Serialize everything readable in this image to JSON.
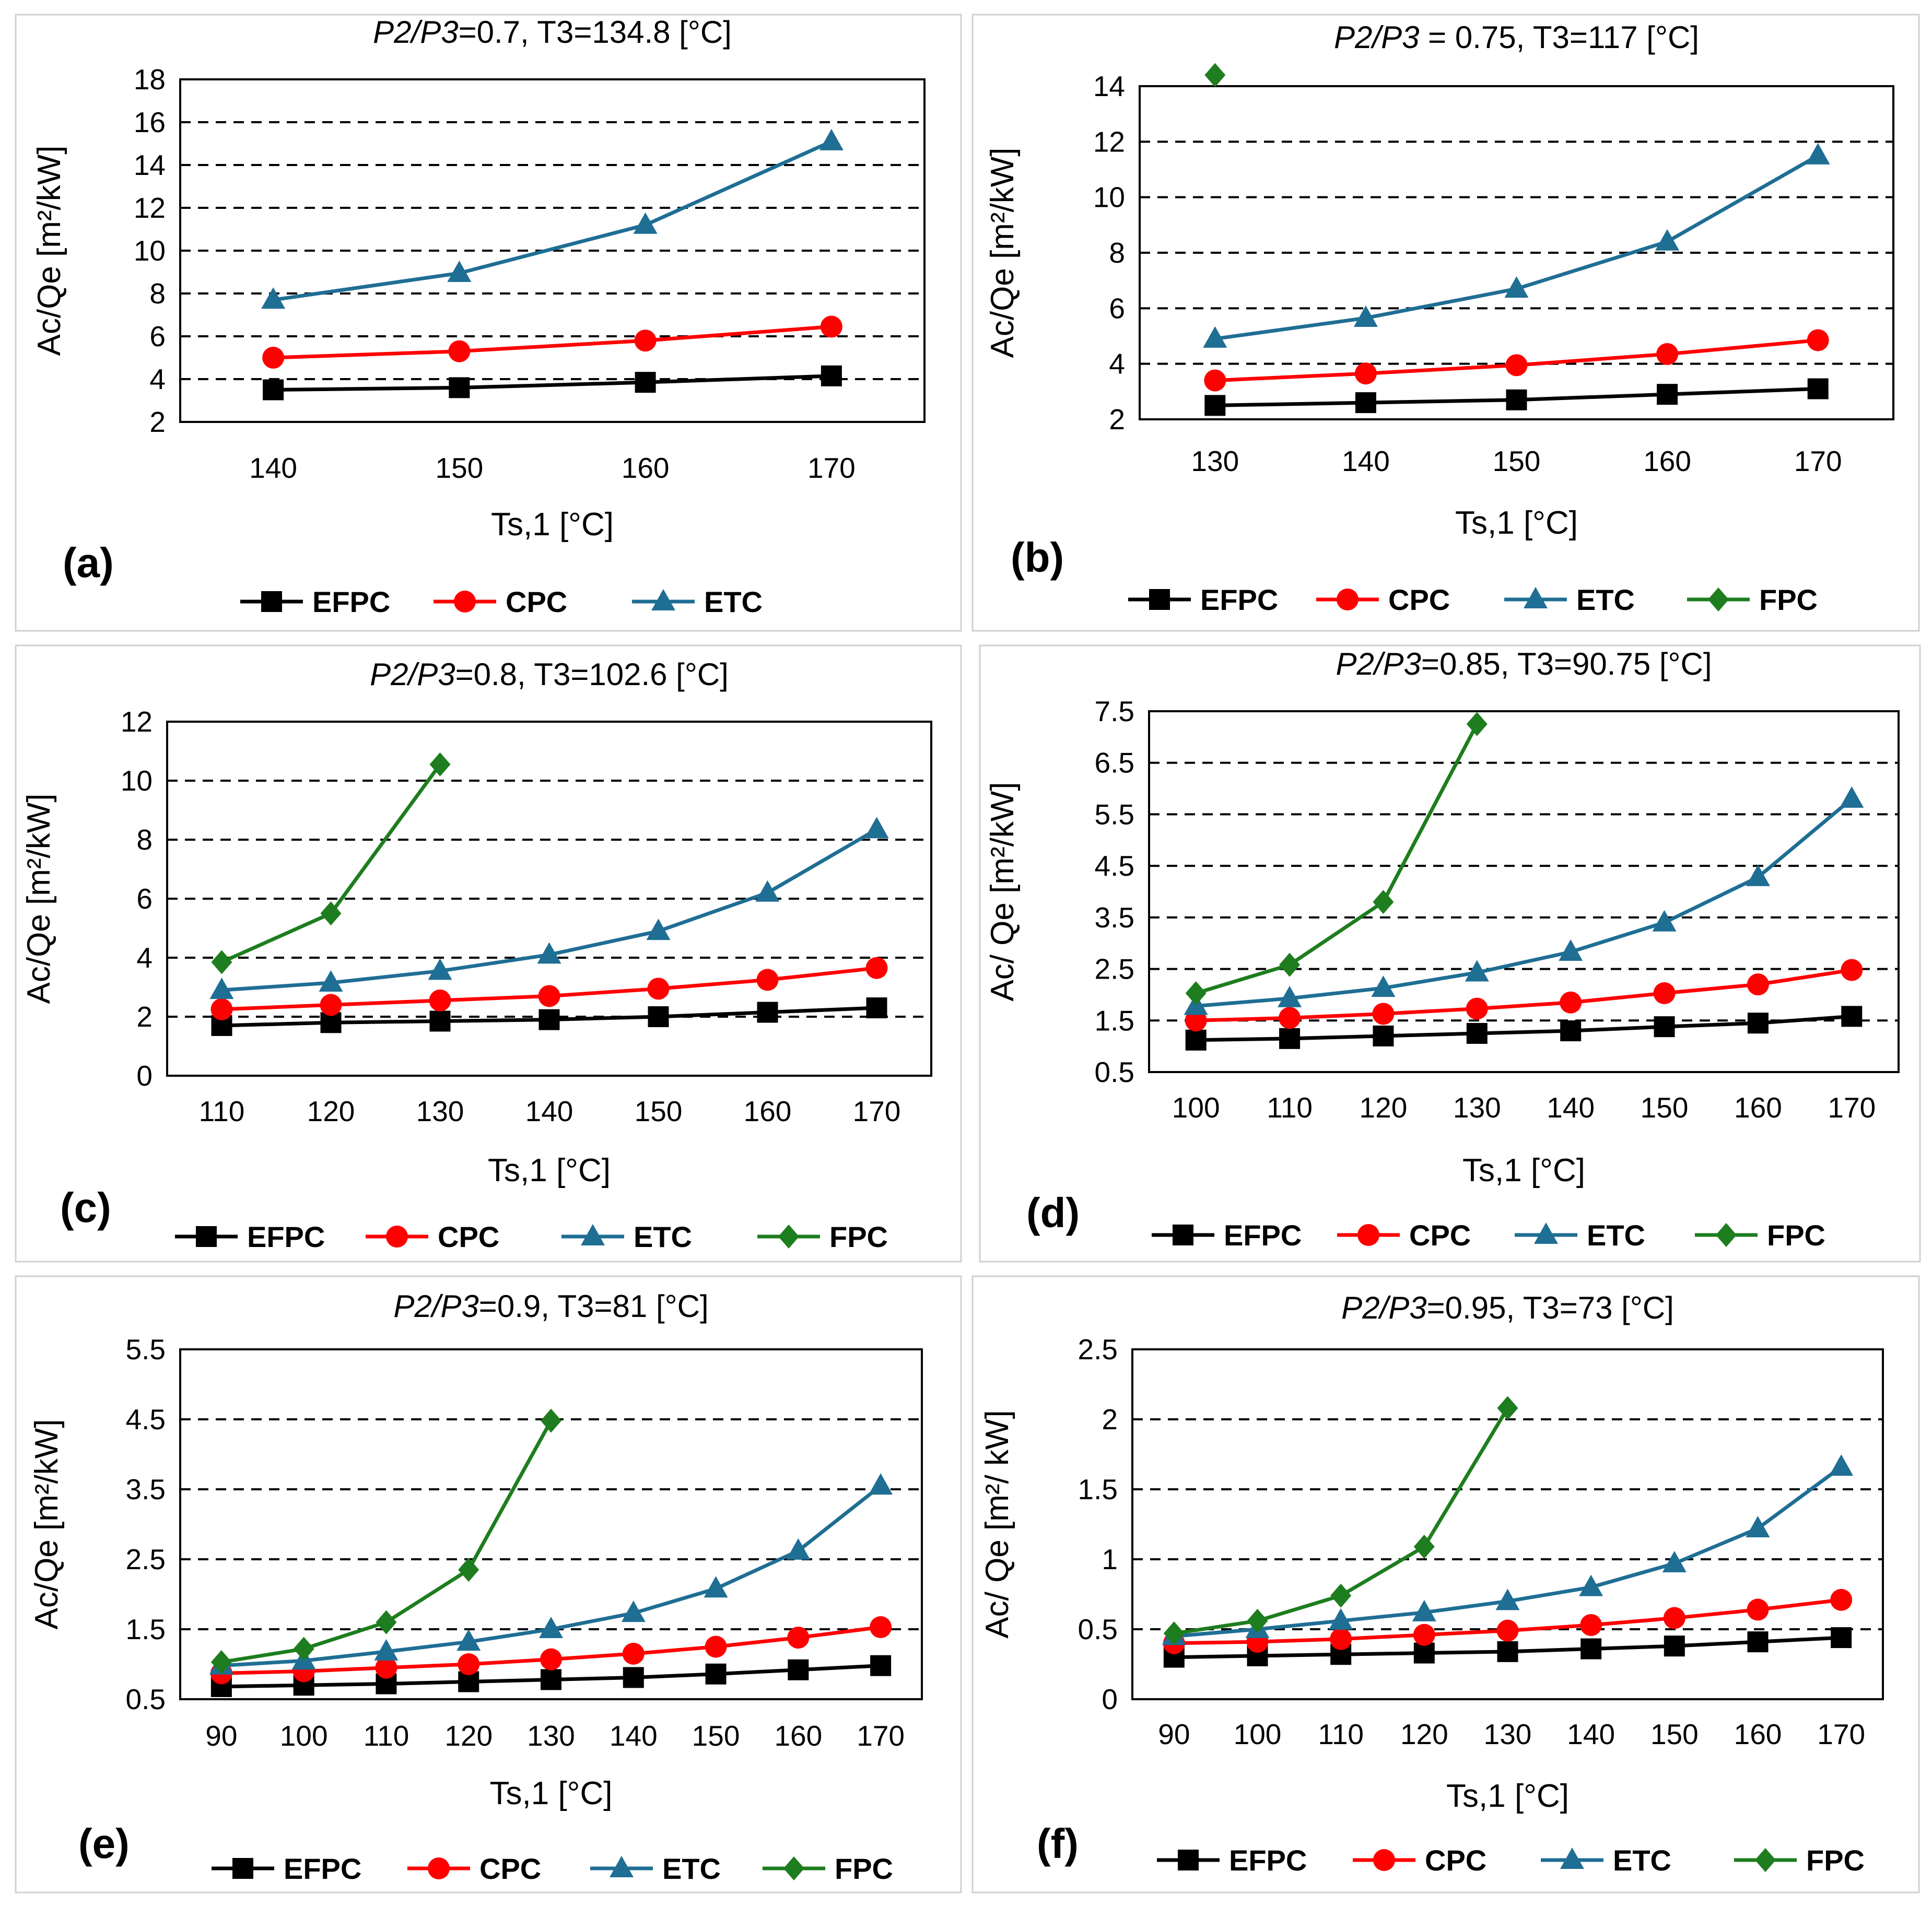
{
  "series_styles": {
    "EFPC": {
      "color": "#000000",
      "marker": "square"
    },
    "CPC": {
      "color": "#ff0000",
      "marker": "circle"
    },
    "ETC": {
      "color": "#1f6e94",
      "marker": "triangle"
    },
    "FPC": {
      "color": "#1e7d1e",
      "marker": "diamond"
    }
  },
  "chart_data": [
    {
      "type": "line",
      "panel_label": "(a)",
      "title_italic": "P2/P3",
      "title_rest": "=0.7, T3=134.8 [°C]",
      "xlabel": "Ts,1 [°C]",
      "ylabel": "Ac/Qe [m²/kW]",
      "x": [
        140,
        150,
        160,
        170
      ],
      "xticks": [
        "140",
        "150",
        "160",
        "170"
      ],
      "ylim": [
        2,
        18
      ],
      "yticks": [
        2,
        4,
        6,
        8,
        10,
        12,
        14,
        16,
        18
      ],
      "ytick_labels": [
        "2",
        "4",
        "6",
        "8",
        "10",
        "12",
        "14",
        "16",
        "18"
      ],
      "legend": [
        "EFPC",
        "CPC",
        "ETC"
      ],
      "series": [
        {
          "name": "EFPC",
          "values": [
            3.5,
            3.6,
            3.85,
            4.15
          ]
        },
        {
          "name": "CPC",
          "values": [
            5.0,
            5.3,
            5.8,
            6.45
          ]
        },
        {
          "name": "ETC",
          "values": [
            7.7,
            8.95,
            11.2,
            15.1
          ]
        }
      ]
    },
    {
      "type": "line",
      "panel_label": "(b)",
      "title_italic": "P2/P3",
      "title_rest": " = 0.75, T3=117 [°C]",
      "xlabel": "Ts,1 [°C]",
      "ylabel": "Ac/Qe [m²/kW]",
      "x": [
        130,
        140,
        150,
        160,
        170
      ],
      "xticks": [
        "130",
        "140",
        "150",
        "160",
        "170"
      ],
      "ylim": [
        2,
        14
      ],
      "yticks": [
        2,
        4,
        6,
        8,
        10,
        12,
        14
      ],
      "ytick_labels": [
        "2",
        "4",
        "6",
        "8",
        "10",
        "12",
        "14"
      ],
      "legend": [
        "EFPC",
        "CPC",
        "ETC",
        "FPC"
      ],
      "series": [
        {
          "name": "EFPC",
          "values": [
            2.5,
            2.6,
            2.7,
            2.9,
            3.1
          ]
        },
        {
          "name": "CPC",
          "values": [
            3.4,
            3.65,
            3.95,
            4.35,
            4.85
          ]
        },
        {
          "name": "ETC",
          "values": [
            4.9,
            5.65,
            6.7,
            8.4,
            11.5
          ]
        },
        {
          "name": "FPC",
          "values": [
            14.4,
            null,
            null,
            null,
            null
          ]
        }
      ]
    },
    {
      "type": "line",
      "panel_label": "(c)",
      "title_italic": "P2/P3",
      "title_rest": "=0.8, T3=102.6 [°C]",
      "xlabel": "Ts,1 [°C]",
      "ylabel": "Ac/Qe [m²/kW]",
      "x": [
        110,
        120,
        130,
        140,
        150,
        160,
        170
      ],
      "xticks": [
        "110",
        "120",
        "130",
        "140",
        "150",
        "160",
        "170"
      ],
      "ylim": [
        0,
        12
      ],
      "yticks": [
        0,
        2,
        4,
        6,
        8,
        10,
        12
      ],
      "ytick_labels": [
        "0",
        "2",
        "4",
        "6",
        "8",
        "10",
        "12"
      ],
      "legend": [
        "EFPC",
        "CPC",
        "ETC",
        "FPC"
      ],
      "series": [
        {
          "name": "EFPC",
          "values": [
            1.7,
            1.8,
            1.85,
            1.9,
            2.0,
            2.15,
            2.3
          ]
        },
        {
          "name": "CPC",
          "values": [
            2.25,
            2.4,
            2.55,
            2.7,
            2.95,
            3.25,
            3.65
          ]
        },
        {
          "name": "ETC",
          "values": [
            2.9,
            3.15,
            3.55,
            4.1,
            4.9,
            6.2,
            8.35
          ]
        },
        {
          "name": "FPC",
          "values": [
            3.85,
            5.5,
            10.55,
            null,
            null,
            null,
            null
          ]
        }
      ]
    },
    {
      "type": "line",
      "panel_label": "(d)",
      "title_italic": "P2/P3",
      "title_rest": "=0.85, T3=90.75 [°C]",
      "xlabel": "Ts,1 [°C]",
      "ylabel": "Ac/ Qe [m²/kW]",
      "x": [
        100,
        110,
        120,
        130,
        140,
        150,
        160,
        170
      ],
      "xticks": [
        "100",
        "110",
        "120",
        "130",
        "140",
        "150",
        "160",
        "170"
      ],
      "ylim": [
        0.5,
        7.5
      ],
      "yticks": [
        0.5,
        1.5,
        2.5,
        3.5,
        4.5,
        5.5,
        6.5,
        7.5
      ],
      "ytick_labels": [
        "0.5",
        "1.5",
        "2.5",
        "3.5",
        "4.5",
        "5.5",
        "6.5",
        "7.5"
      ],
      "legend": [
        "EFPC",
        "CPC",
        "ETC",
        "FPC"
      ],
      "series": [
        {
          "name": "EFPC",
          "values": [
            1.12,
            1.15,
            1.2,
            1.25,
            1.3,
            1.38,
            1.45,
            1.58
          ]
        },
        {
          "name": "CPC",
          "values": [
            1.5,
            1.55,
            1.63,
            1.73,
            1.85,
            2.03,
            2.2,
            2.48
          ]
        },
        {
          "name": "ETC",
          "values": [
            1.78,
            1.93,
            2.13,
            2.43,
            2.83,
            3.4,
            4.28,
            5.8
          ]
        },
        {
          "name": "FPC",
          "values": [
            2.03,
            2.58,
            3.8,
            7.25,
            null,
            null,
            null,
            null
          ]
        }
      ]
    },
    {
      "type": "line",
      "panel_label": "(e)",
      "title_italic": "P2/P3",
      "title_rest": "=0.9, T3=81 [°C]",
      "xlabel": "Ts,1 [°C]",
      "ylabel": "Ac/Qe [m²/kW]",
      "x": [
        90,
        100,
        110,
        120,
        130,
        140,
        150,
        160,
        170
      ],
      "xticks": [
        "90",
        "100",
        "110",
        "120",
        "130",
        "140",
        "150",
        "160",
        "170"
      ],
      "ylim": [
        0.5,
        5.5
      ],
      "yticks": [
        0.5,
        1.5,
        2.5,
        3.5,
        4.5,
        5.5
      ],
      "ytick_labels": [
        "0.5",
        "1.5",
        "2.5",
        "3.5",
        "4.5",
        "5.5"
      ],
      "legend": [
        "EFPC",
        "CPC",
        "ETC",
        "FPC"
      ],
      "series": [
        {
          "name": "EFPC",
          "values": [
            0.68,
            0.7,
            0.72,
            0.75,
            0.78,
            0.81,
            0.86,
            0.92,
            0.98
          ]
        },
        {
          "name": "CPC",
          "values": [
            0.87,
            0.9,
            0.95,
            1.0,
            1.07,
            1.15,
            1.25,
            1.38,
            1.53
          ]
        },
        {
          "name": "ETC",
          "values": [
            0.98,
            1.05,
            1.18,
            1.32,
            1.5,
            1.73,
            2.08,
            2.62,
            3.55
          ]
        },
        {
          "name": "FPC",
          "values": [
            1.03,
            1.22,
            1.6,
            2.35,
            4.48,
            null,
            null,
            null,
            null
          ]
        }
      ]
    },
    {
      "type": "line",
      "panel_label": "(f)",
      "title_italic": "P2/P3",
      "title_rest": "=0.95, T3=73 [°C]",
      "xlabel": "Ts,1 [°C]",
      "ylabel": "Ac/ Qe [m²/ kW]",
      "x": [
        90,
        100,
        110,
        120,
        130,
        140,
        150,
        160,
        170
      ],
      "xticks": [
        "90",
        "100",
        "110",
        "120",
        "130",
        "140",
        "150",
        "160",
        "170"
      ],
      "ylim": [
        0,
        2.5
      ],
      "yticks": [
        0,
        0.5,
        1,
        1.5,
        2,
        2.5
      ],
      "ytick_labels": [
        "0",
        "0.5",
        "1",
        "1.5",
        "2",
        "2.5"
      ],
      "legend": [
        "EFPC",
        "CPC",
        "ETC",
        "FPC"
      ],
      "series": [
        {
          "name": "EFPC",
          "values": [
            0.3,
            0.31,
            0.32,
            0.33,
            0.34,
            0.36,
            0.38,
            0.41,
            0.44
          ]
        },
        {
          "name": "CPC",
          "values": [
            0.4,
            0.41,
            0.43,
            0.46,
            0.49,
            0.53,
            0.58,
            0.64,
            0.71
          ]
        },
        {
          "name": "ETC",
          "values": [
            0.45,
            0.5,
            0.56,
            0.62,
            0.7,
            0.8,
            0.97,
            1.22,
            1.66
          ]
        },
        {
          "name": "FPC",
          "values": [
            0.47,
            0.56,
            0.74,
            1.09,
            2.08,
            null,
            null,
            null,
            null
          ]
        }
      ]
    }
  ]
}
